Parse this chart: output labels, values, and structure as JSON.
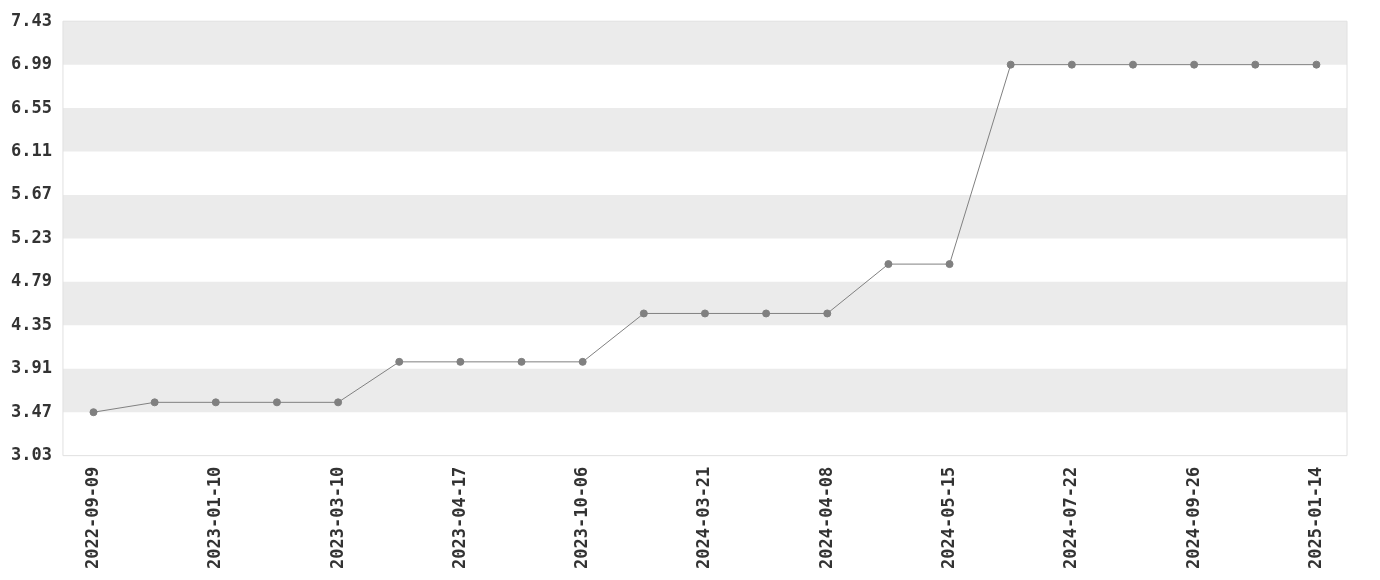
{
  "chart_data": {
    "type": "line",
    "categories": [
      "2022-09-09",
      null,
      "2023-01-10",
      null,
      "2023-03-10",
      null,
      "2023-04-17",
      null,
      "2023-10-06",
      null,
      "2024-03-21",
      null,
      "2024-04-08",
      null,
      "2024-05-15",
      null,
      "2024-07-22",
      null,
      "2024-09-26",
      null,
      "2025-01-14"
    ],
    "series": [
      {
        "color": "#808080",
        "values": [
          3.47,
          3.57,
          3.57,
          3.57,
          3.57,
          3.98,
          3.98,
          3.98,
          3.98,
          4.47,
          4.47,
          4.47,
          4.47,
          4.97,
          4.97,
          6.99,
          6.99,
          6.99,
          6.99,
          6.99,
          6.99
        ]
      }
    ],
    "ylim": [
      3.03,
      7.43
    ],
    "yticks": [
      3.03,
      3.47,
      3.91,
      4.35,
      4.79,
      5.23,
      5.67,
      6.11,
      6.55,
      6.99,
      7.43
    ],
    "bands": [
      {
        "axis": "y",
        "from": 3.47,
        "to": 3.91,
        "color": "#ebebeb"
      },
      {
        "axis": "y",
        "from": 4.35,
        "to": 4.79,
        "color": "#ebebeb"
      },
      {
        "axis": "y",
        "from": 5.23,
        "to": 5.67,
        "color": "#ebebeb"
      },
      {
        "axis": "y",
        "from": 6.11,
        "to": 6.55,
        "color": "#ebebeb"
      },
      {
        "axis": "y",
        "from": 6.99,
        "to": 7.43,
        "color": "#ebebeb"
      }
    ],
    "marker": "circle",
    "legend": false
  }
}
